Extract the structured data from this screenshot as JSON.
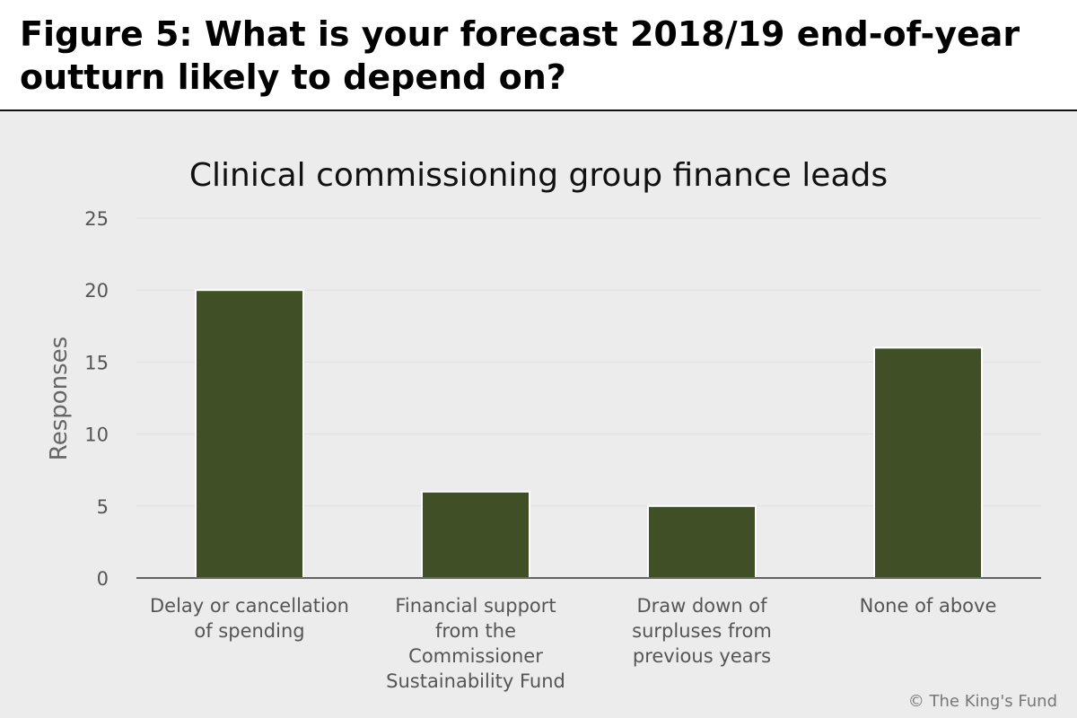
{
  "figure_title": "Figure 5: What is your forecast 2018/19 end-of-year outturn likely to depend on?",
  "copyright": "© The King's Fund",
  "colors": {
    "bar": "#414f26",
    "panel_background": "#ececec",
    "gridline": "#dedede",
    "baseline": "#333333"
  },
  "chart_data": {
    "type": "bar",
    "title": "Clinical commissioning group finance leads",
    "xlabel": "",
    "ylabel": "Responses",
    "ylim": [
      0,
      25
    ],
    "yticks": [
      0,
      5,
      10,
      15,
      20,
      25
    ],
    "grid": true,
    "legend": "none",
    "categories": [
      [
        "Delay or cancellation",
        "of spending"
      ],
      [
        "Financial support",
        "from the",
        "Commissioner",
        "Sustainability Fund"
      ],
      [
        "Draw down of",
        "surpluses from",
        "previous years"
      ],
      [
        "None of above"
      ]
    ],
    "values": [
      20,
      6,
      5,
      16
    ]
  }
}
